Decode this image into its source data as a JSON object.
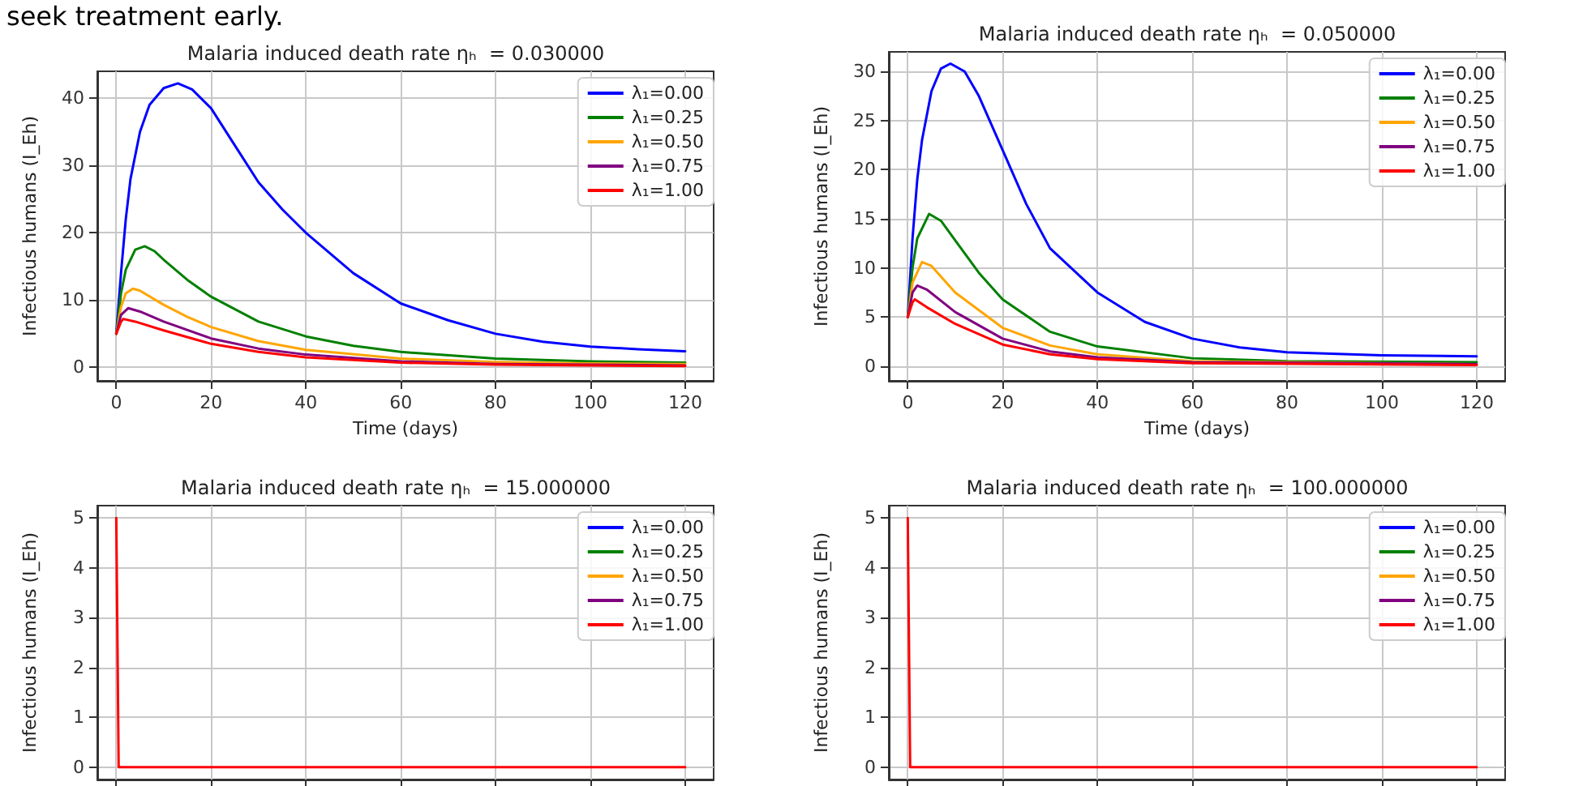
{
  "chart_data": [
    {
      "type": "line",
      "title": "Malaria induced death rate ηₕ  = 0.030000",
      "xlabel": "Time (days)",
      "ylabel": "Infectious humans (I_Eh)",
      "annotations": [
        "seek treatment early."
      ],
      "xlim": [
        -4,
        126
      ],
      "xticks": [
        0,
        20,
        40,
        60,
        80,
        100,
        120
      ],
      "ylim": [
        -2,
        44
      ],
      "yticks": [
        0,
        10,
        20,
        30,
        40
      ],
      "grid": true,
      "legend": "top right",
      "line_style": "solid",
      "series": [
        {
          "name": "λ₁=0.00",
          "color": "#0000ff",
          "x": [
            0,
            1,
            2,
            3,
            5,
            7,
            10,
            13,
            16,
            20,
            25,
            30,
            35,
            40,
            50,
            60,
            70,
            80,
            90,
            100,
            110,
            120
          ],
          "values": [
            5,
            14,
            22,
            28,
            35,
            39,
            41.5,
            42.2,
            41.3,
            38.5,
            33,
            27.5,
            23.5,
            20,
            14,
            9.5,
            7,
            5,
            3.8,
            3.1,
            2.7,
            2.4
          ]
        },
        {
          "name": "λ₁=0.25",
          "color": "#008000",
          "x": [
            0,
            1,
            2,
            4,
            6,
            8,
            10,
            15,
            20,
            30,
            40,
            50,
            60,
            80,
            100,
            120
          ],
          "values": [
            5,
            11,
            14.5,
            17.5,
            18,
            17.3,
            16,
            13,
            10.5,
            6.8,
            4.6,
            3.2,
            2.3,
            1.3,
            0.9,
            0.7
          ]
        },
        {
          "name": "λ₁=0.50",
          "color": "#ffa500",
          "x": [
            0,
            1,
            2,
            3.5,
            5,
            10,
            15,
            20,
            30,
            40,
            60,
            80,
            100,
            120
          ],
          "values": [
            5,
            9,
            11,
            11.7,
            11.4,
            9.3,
            7.5,
            6,
            3.9,
            2.6,
            1.3,
            0.8,
            0.6,
            0.5
          ]
        },
        {
          "name": "λ₁=0.75",
          "color": "#800080",
          "x": [
            0,
            1,
            2.5,
            5,
            10,
            20,
            30,
            40,
            60,
            80,
            120
          ],
          "values": [
            5,
            7.8,
            8.8,
            8.3,
            6.8,
            4.3,
            2.8,
            1.9,
            0.9,
            0.5,
            0.3
          ]
        },
        {
          "name": "λ₁=1.00",
          "color": "#ff0000",
          "x": [
            0,
            1,
            1.5,
            4,
            10,
            20,
            30,
            40,
            60,
            80,
            120
          ],
          "values": [
            5,
            6.8,
            7.2,
            6.8,
            5.5,
            3.5,
            2.3,
            1.5,
            0.7,
            0.4,
            0.2
          ]
        }
      ]
    },
    {
      "type": "line",
      "title": "Malaria induced death rate ηₕ  = 0.050000",
      "xlabel": "Time (days)",
      "ylabel": "Infectious humans (I_Eh)",
      "xlim": [
        -4,
        126
      ],
      "xticks": [
        0,
        20,
        40,
        60,
        80,
        100,
        120
      ],
      "ylim": [
        -1.5,
        32
      ],
      "yticks": [
        0,
        5,
        10,
        15,
        20,
        25,
        30
      ],
      "grid": true,
      "legend": "top right",
      "line_style": "solid",
      "series": [
        {
          "name": "λ₁=0.00",
          "color": "#0000ff",
          "x": [
            0,
            1,
            2,
            3,
            5,
            7,
            9,
            12,
            15,
            20,
            25,
            30,
            40,
            50,
            60,
            70,
            80,
            100,
            120
          ],
          "values": [
            5,
            13,
            19,
            23,
            28,
            30.3,
            30.8,
            30,
            27.5,
            22,
            16.5,
            12,
            7.5,
            4.5,
            2.8,
            1.9,
            1.4,
            1.1,
            1.0
          ]
        },
        {
          "name": "λ₁=0.25",
          "color": "#008000",
          "x": [
            0,
            1,
            2,
            4.5,
            7,
            10,
            15,
            20,
            30,
            40,
            60,
            80,
            120
          ],
          "values": [
            5,
            10,
            13,
            15.5,
            14.8,
            12.8,
            9.5,
            6.8,
            3.5,
            2,
            0.8,
            0.5,
            0.4
          ]
        },
        {
          "name": "λ₁=0.50",
          "color": "#ffa500",
          "x": [
            0,
            1,
            3,
            5,
            10,
            20,
            30,
            40,
            60,
            120
          ],
          "values": [
            5,
            8.5,
            10.6,
            10.2,
            7.5,
            3.9,
            2.1,
            1.2,
            0.5,
            0.2
          ]
        },
        {
          "name": "λ₁=0.75",
          "color": "#800080",
          "x": [
            0,
            1,
            2,
            4,
            10,
            20,
            30,
            40,
            60,
            120
          ],
          "values": [
            5,
            7.5,
            8.2,
            7.8,
            5.5,
            2.8,
            1.5,
            0.9,
            0.4,
            0.2
          ]
        },
        {
          "name": "λ₁=1.00",
          "color": "#ff0000",
          "x": [
            0,
            1,
            1.5,
            4,
            10,
            20,
            30,
            40,
            60,
            120
          ],
          "values": [
            5,
            6.5,
            6.8,
            6,
            4.3,
            2.2,
            1.2,
            0.7,
            0.3,
            0.1
          ]
        }
      ]
    },
    {
      "type": "line",
      "title": "Malaria induced death rate ηₕ  = 15.000000",
      "ylabel": "Infectious humans (I_Eh)",
      "xlim": [
        -4,
        126
      ],
      "xticks": [
        0,
        20,
        40,
        60,
        80,
        100,
        120
      ],
      "ylim": [
        -0.25,
        5.25
      ],
      "yticks": [
        0,
        1,
        2,
        3,
        4,
        5
      ],
      "tick_labels": "y",
      "grid": true,
      "legend": "top right",
      "line_style": "solid",
      "series": [
        {
          "name": "λ₁=0.00",
          "color": "#0000ff"
        },
        {
          "name": "λ₁=0.25",
          "color": "#008000"
        },
        {
          "name": "λ₁=0.50",
          "color": "#ffa500"
        },
        {
          "name": "λ₁=0.75",
          "color": "#800080"
        },
        {
          "name": "λ₁=1.00",
          "color": "#ff0000",
          "x": [
            0,
            0.5,
            120
          ],
          "values": [
            5,
            0,
            0
          ]
        }
      ]
    },
    {
      "type": "line",
      "title": "Malaria induced death rate ηₕ  = 100.000000",
      "ylabel": "Infectious humans (I_Eh)",
      "xlim": [
        -4,
        126
      ],
      "xticks": [
        0,
        20,
        40,
        60,
        80,
        100,
        120
      ],
      "ylim": [
        -0.25,
        5.25
      ],
      "yticks": [
        0,
        1,
        2,
        3,
        4,
        5
      ],
      "tick_labels": "y",
      "grid": true,
      "legend": "top right",
      "line_style": "solid",
      "series": [
        {
          "name": "λ₁=0.00",
          "color": "#0000ff"
        },
        {
          "name": "λ₁=0.25",
          "color": "#008000"
        },
        {
          "name": "λ₁=0.50",
          "color": "#ffa500"
        },
        {
          "name": "λ₁=0.75",
          "color": "#800080"
        },
        {
          "name": "λ₁=1.00",
          "color": "#ff0000",
          "x": [
            0,
            0.5,
            120
          ],
          "values": [
            5,
            0,
            0
          ]
        }
      ]
    }
  ]
}
